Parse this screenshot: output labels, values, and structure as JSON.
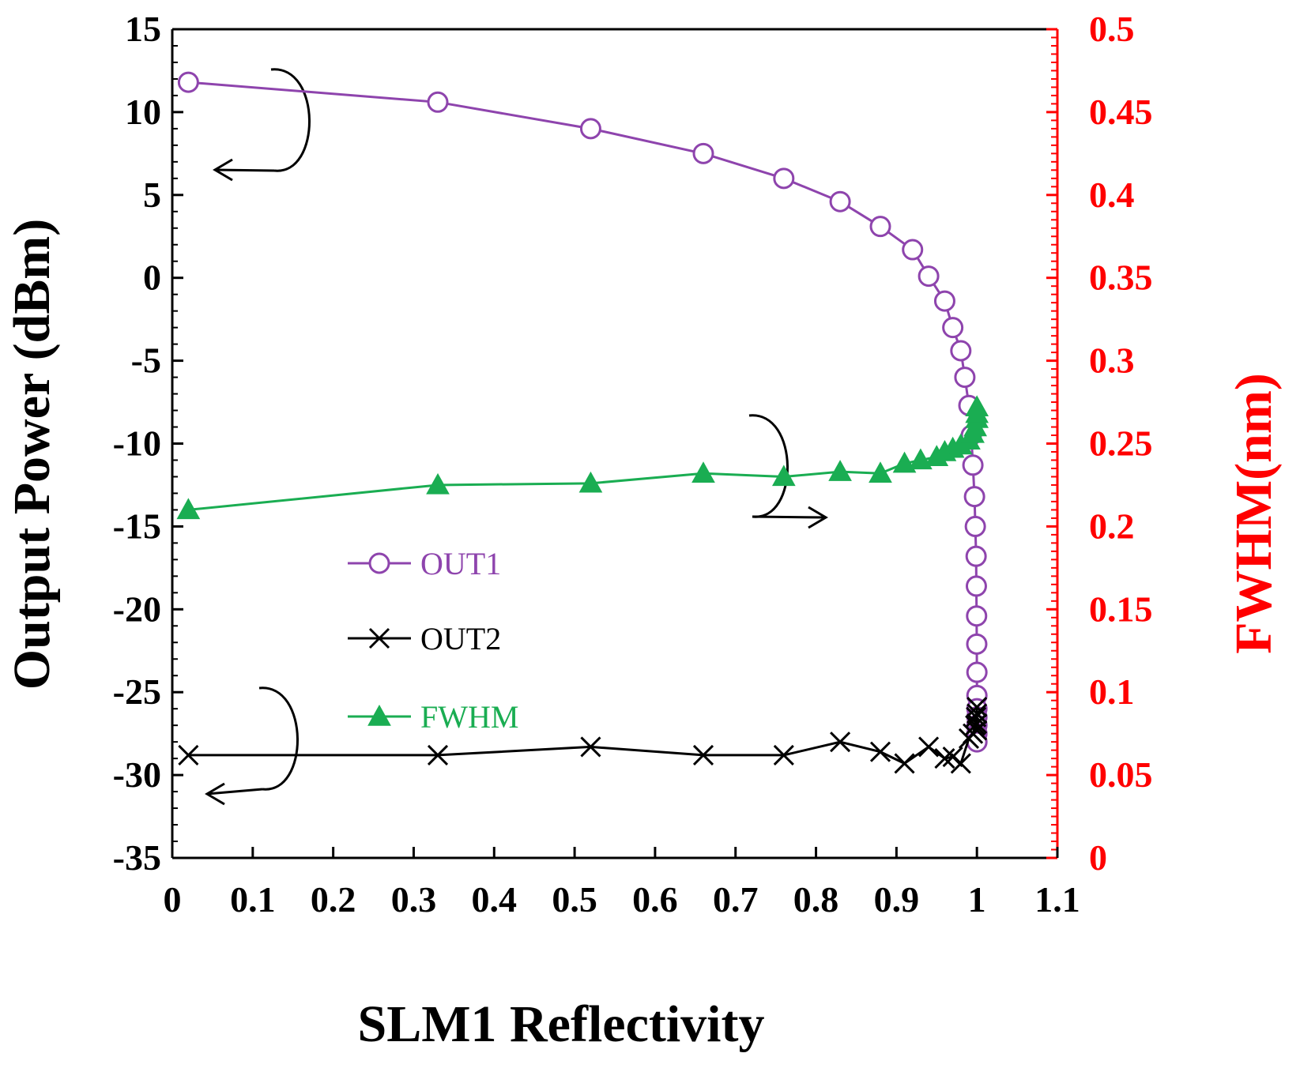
{
  "chart_data": {
    "type": "line",
    "xlabel": "SLM1 Reflectivity",
    "ylabel": "Output Power (dBm)",
    "y2label": "FWHM(nm)",
    "xlim": [
      0,
      1.1
    ],
    "ylim": [
      -35,
      15
    ],
    "y2lim": [
      0,
      0.5
    ],
    "x_ticks": [
      "0",
      "0.1",
      "0.2",
      "0.3",
      "0.4",
      "0.5",
      "0.6",
      "0.7",
      "0.8",
      "0.9",
      "1",
      "1.1"
    ],
    "y_ticks": [
      "15",
      "10",
      "5",
      "0",
      "-5",
      "-10",
      "-15",
      "-20",
      "-25",
      "-30",
      "-35"
    ],
    "y2_ticks": [
      "0.5",
      "0.45",
      "0.4",
      "0.35",
      "0.3",
      "0.25",
      "0.2",
      "0.15",
      "0.1",
      "0.05",
      "0"
    ],
    "colors": {
      "out1": "#8e44ad",
      "out2": "#000000",
      "fwhm": "#1aad52",
      "right_axis": "#ff0000"
    },
    "series": [
      {
        "name": "OUT1",
        "axis": "left",
        "marker": "circle",
        "x": [
          0.02,
          0.33,
          0.52,
          0.66,
          0.76,
          0.83,
          0.88,
          0.92,
          0.94,
          0.96,
          0.97,
          0.98,
          0.985,
          0.99,
          0.993,
          0.995,
          0.997,
          0.998,
          0.999,
          0.9993,
          0.9996,
          0.9998,
          1.0,
          1.0,
          1.0,
          1.0,
          1.0,
          1.0,
          1.0
        ],
        "values": [
          11.8,
          10.6,
          9.0,
          7.5,
          6.0,
          4.6,
          3.1,
          1.7,
          0.1,
          -1.4,
          -3.0,
          -4.4,
          -6.0,
          -7.7,
          -9.5,
          -11.3,
          -13.2,
          -15.0,
          -16.8,
          -18.6,
          -20.4,
          -22.1,
          -23.8,
          -25.2,
          -26.0,
          -26.5,
          -27.0,
          -27.5,
          -28.0
        ]
      },
      {
        "name": "OUT2",
        "axis": "left",
        "marker": "x",
        "x": [
          0.02,
          0.33,
          0.52,
          0.66,
          0.76,
          0.83,
          0.88,
          0.91,
          0.94,
          0.96,
          0.97,
          0.98,
          0.99,
          0.995,
          0.998,
          0.999,
          1.0,
          1.0,
          1.0,
          1.0
        ],
        "values": [
          -28.8,
          -28.8,
          -28.3,
          -28.8,
          -28.8,
          -28.0,
          -28.6,
          -29.3,
          -28.3,
          -29.0,
          -28.9,
          -29.3,
          -27.8,
          -27.5,
          -27.0,
          -26.5,
          -27.3,
          -26.9,
          -26.3,
          -25.9
        ]
      },
      {
        "name": "FWHM",
        "axis": "right",
        "marker": "triangle",
        "x": [
          0.02,
          0.33,
          0.52,
          0.66,
          0.76,
          0.83,
          0.88,
          0.91,
          0.93,
          0.95,
          0.96,
          0.97,
          0.98,
          0.99,
          0.995,
          0.998,
          1.0,
          1.0,
          1.0
        ],
        "values": [
          0.21,
          0.225,
          0.226,
          0.232,
          0.23,
          0.233,
          0.232,
          0.238,
          0.24,
          0.242,
          0.245,
          0.247,
          0.249,
          0.252,
          0.256,
          0.26,
          0.265,
          0.268,
          0.272
        ]
      }
    ],
    "legend": {
      "position": "center-left",
      "entries": [
        "OUT1",
        "OUT2",
        "FWHM"
      ]
    }
  }
}
